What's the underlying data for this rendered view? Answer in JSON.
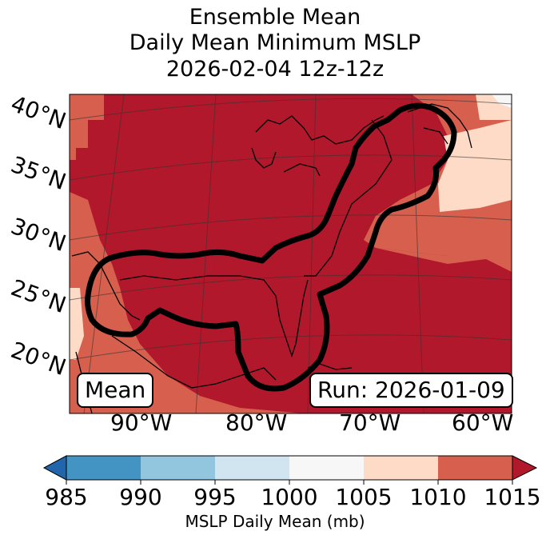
{
  "title": {
    "line1": "Ensemble Mean",
    "line2": "Daily Mean Minimum MSLP",
    "line3": "2026-02-04 12z-12z"
  },
  "map": {
    "lat_labels": [
      "40°N",
      "35°N",
      "30°N",
      "25°N",
      "20°N"
    ],
    "lon_labels": [
      "90°W",
      "80°W",
      "70°W",
      "60°W"
    ],
    "mean_box": "Mean",
    "run_box": "Run: 2026-01-09",
    "contour_color": "#000000"
  },
  "colorbar": {
    "ticks": [
      "985",
      "990",
      "995",
      "1000",
      "1005",
      "1010",
      "1015"
    ],
    "label": "MSLP Daily Mean (mb)",
    "colors": [
      "#2166ac",
      "#4393c3",
      "#92c5de",
      "#d1e5f0",
      "#f7f7f7",
      "#fddbc7",
      "#d6604d",
      "#b2182b"
    ]
  }
}
